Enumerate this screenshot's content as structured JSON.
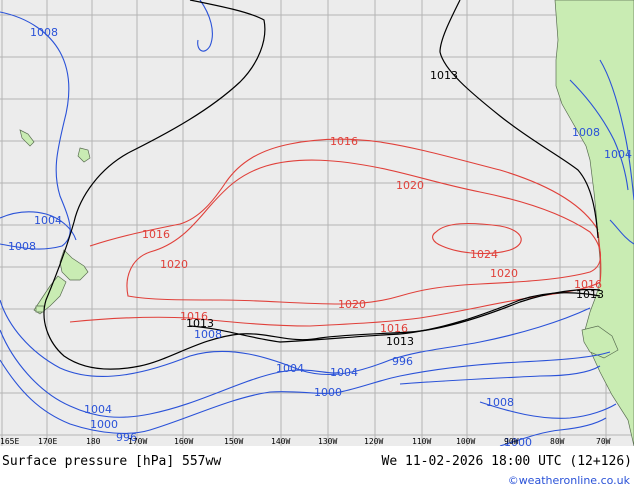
{
  "map": {
    "longitude_labels": [
      "165E",
      "170E",
      "180",
      "170W",
      "160W",
      "150W",
      "140W",
      "130W",
      "120W",
      "110W",
      "100W",
      "90W",
      "80W",
      "70W"
    ],
    "isobars": {
      "blue": [
        "1008",
        "1008",
        "1004",
        "1008",
        "1004",
        "1004",
        "1000",
        "996",
        "1004",
        "1000",
        "996",
        "1008",
        "1008",
        "1004",
        "1000"
      ],
      "red": [
        "1016",
        "1020",
        "1016",
        "1020",
        "1016",
        "1020",
        "1016",
        "1024",
        "1020",
        "1016"
      ],
      "black": [
        "1013",
        "1013",
        "1013",
        "1013"
      ]
    },
    "colors": {
      "low_isobar": "#2a52d8",
      "high_isobar": "#e0403a",
      "reference_isobar": "#000000",
      "land": "#c9ecb3",
      "sea": "#ececec"
    }
  },
  "footer": {
    "product": "Surface pressure [hPa] 557ww",
    "valid_time": "We 11-02-2026 18:00 UTC (12+126)",
    "credit": "©weatheronline.co.uk"
  }
}
